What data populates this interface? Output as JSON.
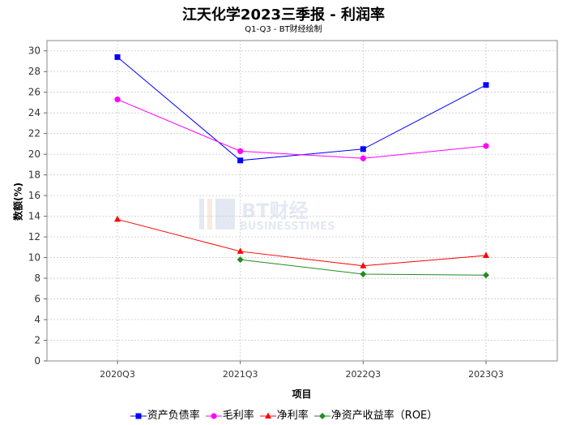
{
  "chart_data": {
    "type": "line",
    "title": "江天化学2023三季报 - 利润率",
    "subtitle": "Q1-Q3 - BT财经绘制",
    "xlabel": "项目",
    "ylabel": "数额(%)",
    "categories": [
      "2020Q3",
      "2021Q3",
      "2022Q3",
      "2023Q3"
    ],
    "ylim": [
      0,
      31
    ],
    "yticks": [
      0,
      2,
      4,
      6,
      8,
      10,
      12,
      14,
      16,
      18,
      20,
      22,
      24,
      26,
      28,
      30
    ],
    "grid": true,
    "legend_position": "bottom",
    "series": [
      {
        "name": "资产负债率",
        "color": "#0000ff",
        "marker": "square",
        "values": [
          29.4,
          19.4,
          20.5,
          26.7
        ]
      },
      {
        "name": "毛利率",
        "color": "#ff00ff",
        "marker": "circle",
        "values": [
          25.3,
          20.3,
          19.6,
          20.8
        ]
      },
      {
        "name": "净利率",
        "color": "#ff0000",
        "marker": "triangle",
        "values": [
          13.7,
          10.6,
          9.2,
          10.2
        ]
      },
      {
        "name": "净资产收益率（ROE）",
        "color": "#228b22",
        "marker": "diamond",
        "values": [
          null,
          9.8,
          8.4,
          8.3
        ]
      }
    ],
    "watermark": "BT财经 BUSINESSTIMES"
  }
}
